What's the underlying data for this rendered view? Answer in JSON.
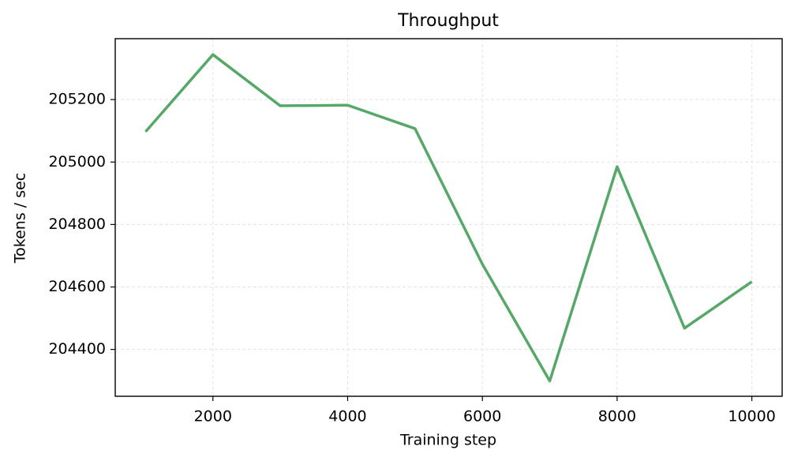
{
  "chart_data": {
    "type": "line",
    "title": "Throughput",
    "xlabel": "Training step",
    "ylabel": "Tokens / sec",
    "x": [
      1000,
      2000,
      3000,
      4000,
      5000,
      6000,
      7000,
      8000,
      9000,
      10000
    ],
    "series": [
      {
        "name": "Throughput",
        "color": "#55a868",
        "values": [
          205097,
          205344,
          205180,
          205182,
          205107,
          204673,
          204299,
          204985,
          204468,
          204617
        ]
      }
    ],
    "xlim": [
      550,
      10450
    ],
    "ylim": [
      204250,
      205395
    ],
    "xticks": [
      2000,
      4000,
      6000,
      8000,
      10000
    ],
    "yticks": [
      204400,
      204600,
      204800,
      205000,
      205200
    ],
    "grid": true
  }
}
